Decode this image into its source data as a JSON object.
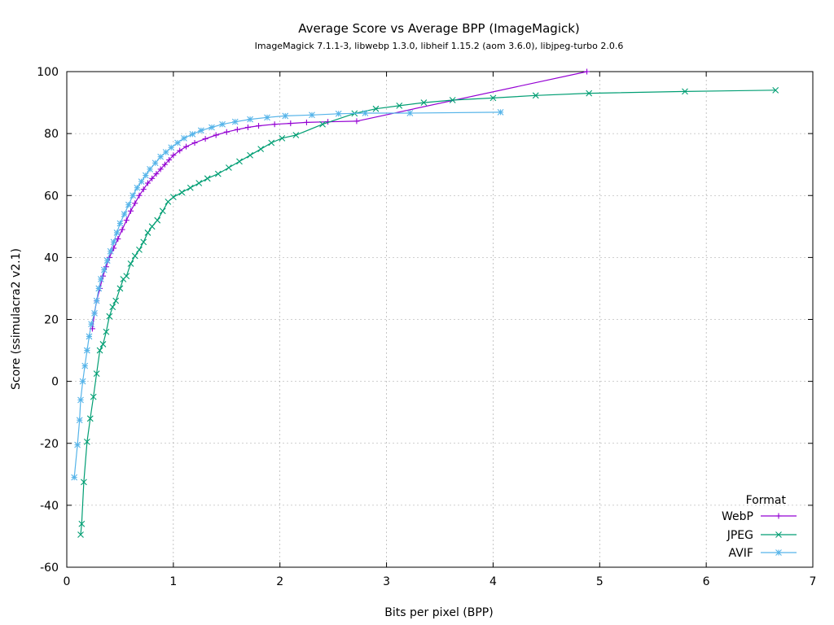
{
  "chart_data": {
    "type": "line",
    "title": "Average Score vs Average BPP (ImageMagick)",
    "subtitle": "ImageMagick 7.1.1-3, libwebp 1.3.0, libheif 1.15.2 (aom 3.6.0), libjpeg-turbo 2.0.6",
    "xlabel": "Bits per pixel (BPP)",
    "ylabel": "Score (ssimulacra2 v2.1)",
    "xlim": [
      0,
      7
    ],
    "ylim": [
      -60,
      100
    ],
    "xticks": [
      "0",
      "1",
      "2",
      "3",
      "4",
      "5",
      "6",
      "7"
    ],
    "yticks": [
      "-60",
      "-40",
      "-20",
      "0",
      "20",
      "40",
      "60",
      "80",
      "100"
    ],
    "grid": true,
    "legend": {
      "title": "Format",
      "position": "bottom-right"
    },
    "series": [
      {
        "name": "WebP",
        "color": "#9400d3",
        "marker": "plus",
        "points": [
          [
            0.24,
            17
          ],
          [
            0.26,
            22
          ],
          [
            0.28,
            26
          ],
          [
            0.31,
            30
          ],
          [
            0.34,
            34
          ],
          [
            0.37,
            37
          ],
          [
            0.4,
            40
          ],
          [
            0.44,
            43
          ],
          [
            0.48,
            46
          ],
          [
            0.52,
            49
          ],
          [
            0.56,
            52
          ],
          [
            0.6,
            55
          ],
          [
            0.64,
            57.5
          ],
          [
            0.68,
            60
          ],
          [
            0.72,
            62
          ],
          [
            0.76,
            64
          ],
          [
            0.8,
            65.5
          ],
          [
            0.84,
            67
          ],
          [
            0.88,
            68.5
          ],
          [
            0.92,
            70
          ],
          [
            0.96,
            71.5
          ],
          [
            1.0,
            73
          ],
          [
            1.06,
            74.5
          ],
          [
            1.12,
            75.8
          ],
          [
            1.2,
            77
          ],
          [
            1.3,
            78.3
          ],
          [
            1.4,
            79.5
          ],
          [
            1.5,
            80.5
          ],
          [
            1.6,
            81.3
          ],
          [
            1.7,
            82
          ],
          [
            1.8,
            82.5
          ],
          [
            1.95,
            83
          ],
          [
            2.1,
            83.3
          ],
          [
            2.25,
            83.6
          ],
          [
            2.45,
            83.8
          ],
          [
            2.72,
            84
          ],
          [
            4.88,
            100
          ]
        ]
      },
      {
        "name": "JPEG",
        "color": "#009e73",
        "marker": "x",
        "points": [
          [
            0.13,
            -49.5
          ],
          [
            0.14,
            -46
          ],
          [
            0.16,
            -32.5
          ],
          [
            0.19,
            -19.5
          ],
          [
            0.22,
            -12
          ],
          [
            0.25,
            -5
          ],
          [
            0.28,
            2.5
          ],
          [
            0.31,
            10
          ],
          [
            0.34,
            12
          ],
          [
            0.37,
            16
          ],
          [
            0.4,
            21
          ],
          [
            0.43,
            24
          ],
          [
            0.46,
            26
          ],
          [
            0.5,
            30
          ],
          [
            0.53,
            33
          ],
          [
            0.56,
            34
          ],
          [
            0.6,
            38
          ],
          [
            0.64,
            40.5
          ],
          [
            0.68,
            42.5
          ],
          [
            0.72,
            45
          ],
          [
            0.76,
            48
          ],
          [
            0.8,
            50
          ],
          [
            0.85,
            52
          ],
          [
            0.9,
            55
          ],
          [
            0.95,
            58
          ],
          [
            1.0,
            59.5
          ],
          [
            1.08,
            61
          ],
          [
            1.16,
            62.5
          ],
          [
            1.24,
            64
          ],
          [
            1.32,
            65.5
          ],
          [
            1.42,
            67
          ],
          [
            1.52,
            69
          ],
          [
            1.62,
            71
          ],
          [
            1.72,
            73
          ],
          [
            1.82,
            75
          ],
          [
            1.92,
            77
          ],
          [
            2.02,
            78.5
          ],
          [
            2.15,
            79.5
          ],
          [
            2.4,
            83
          ],
          [
            2.7,
            86.5
          ],
          [
            2.9,
            88
          ],
          [
            3.12,
            89
          ],
          [
            3.35,
            90
          ],
          [
            3.62,
            90.8
          ],
          [
            4.0,
            91.5
          ],
          [
            4.4,
            92.3
          ],
          [
            4.9,
            93
          ],
          [
            5.8,
            93.6
          ],
          [
            6.65,
            94
          ]
        ]
      },
      {
        "name": "AVIF",
        "color": "#56b4e9",
        "marker": "star",
        "points": [
          [
            0.07,
            -31
          ],
          [
            0.1,
            -20.5
          ],
          [
            0.12,
            -12.5
          ],
          [
            0.13,
            -6
          ],
          [
            0.15,
            0
          ],
          [
            0.17,
            5
          ],
          [
            0.19,
            10
          ],
          [
            0.21,
            14.5
          ],
          [
            0.23,
            18.5
          ],
          [
            0.26,
            22
          ],
          [
            0.28,
            26
          ],
          [
            0.3,
            30
          ],
          [
            0.32,
            33
          ],
          [
            0.35,
            36
          ],
          [
            0.38,
            39
          ],
          [
            0.41,
            42
          ],
          [
            0.44,
            45
          ],
          [
            0.47,
            48
          ],
          [
            0.5,
            51
          ],
          [
            0.54,
            54
          ],
          [
            0.58,
            57
          ],
          [
            0.62,
            60
          ],
          [
            0.66,
            62.5
          ],
          [
            0.7,
            64.5
          ],
          [
            0.74,
            66.5
          ],
          [
            0.78,
            68.5
          ],
          [
            0.83,
            70.5
          ],
          [
            0.88,
            72.5
          ],
          [
            0.93,
            74
          ],
          [
            0.98,
            75.5
          ],
          [
            1.04,
            77
          ],
          [
            1.1,
            78.5
          ],
          [
            1.18,
            79.8
          ],
          [
            1.26,
            81
          ],
          [
            1.36,
            82
          ],
          [
            1.46,
            83
          ],
          [
            1.58,
            83.8
          ],
          [
            1.72,
            84.6
          ],
          [
            1.88,
            85.2
          ],
          [
            2.05,
            85.7
          ],
          [
            2.3,
            86
          ],
          [
            2.55,
            86.4
          ],
          [
            2.8,
            86.6
          ],
          [
            3.22,
            86.6
          ],
          [
            4.07,
            86.9
          ]
        ]
      }
    ]
  }
}
